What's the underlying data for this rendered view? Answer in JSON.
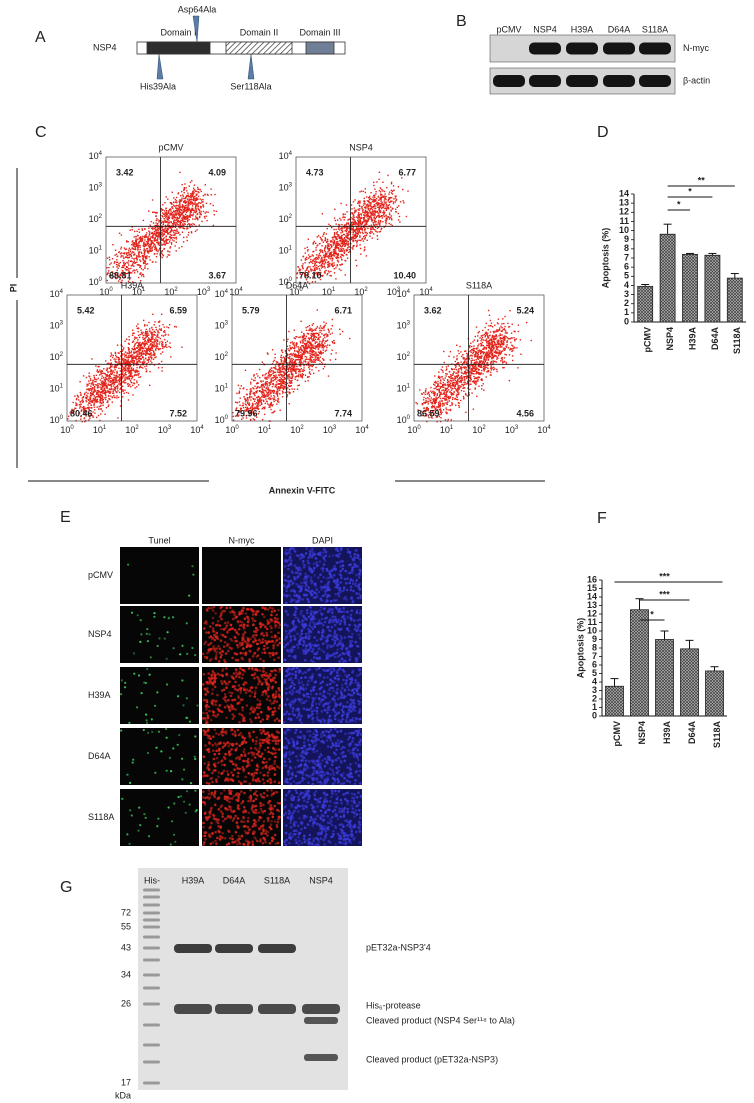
{
  "panels": [
    "A",
    "B",
    "C",
    "D",
    "E",
    "F",
    "G"
  ],
  "domain_map": {
    "protein": "NSP4",
    "domains": [
      "Domain I",
      "Domain II",
      "Domain III"
    ],
    "mutations": [
      "Asp64Ala",
      "His39Ala",
      "Ser118Ala"
    ]
  },
  "western_blot": {
    "lanes": [
      "pCMV",
      "NSP4",
      "H39A",
      "D64A",
      "S118A"
    ],
    "rows": [
      "N-myc",
      "β-actin"
    ]
  },
  "flow_cytometry": {
    "y_label": "PI",
    "x_label": "Annexin V-FITC",
    "tick_base": "10",
    "tick_exponents": [
      "0",
      "1",
      "2",
      "3",
      "4"
    ],
    "plots": [
      {
        "title": "pCMV",
        "quadrants": [
          "3.42",
          "4.09",
          "88.81",
          "3.67"
        ]
      },
      {
        "title": "NSP4",
        "quadrants": [
          "4.73",
          "6.77",
          "78.10",
          "10.40"
        ]
      },
      {
        "title": "H39A",
        "quadrants": [
          "5.42",
          "6.59",
          "80.46",
          "7.52"
        ]
      },
      {
        "title": "D64A",
        "quadrants": [
          "5.79",
          "6.71",
          "79.96",
          "7.74"
        ]
      },
      {
        "title": "S118A",
        "quadrants": [
          "3.62",
          "5.24",
          "86.59",
          "4.56"
        ]
      }
    ]
  },
  "chart_data": [
    {
      "type": "bar",
      "y_label": "Apoptosis (%)",
      "categories": [
        "pCMV",
        "NSP4",
        "H39A",
        "D64A",
        "S118A"
      ],
      "values": [
        3.9,
        9.6,
        7.4,
        7.3,
        4.8
      ],
      "errors": [
        0.2,
        1.1,
        0.1,
        0.2,
        0.5
      ],
      "color": "#8a8a8a",
      "ylim": [
        0,
        14
      ],
      "yticks": [
        0,
        1,
        2,
        3,
        4,
        5,
        6,
        7,
        8,
        9,
        10,
        11,
        12,
        13,
        14
      ],
      "annotations": [
        {
          "text": "**",
          "from": "NSP4",
          "to": "S118A"
        },
        {
          "text": "*",
          "from": "NSP4",
          "to": "D64A"
        },
        {
          "text": "*",
          "from": "NSP4",
          "to": "H39A"
        }
      ]
    },
    {
      "type": "bar",
      "y_label": "Apoptosis  (%)",
      "categories": [
        "pCMV",
        "NSP4",
        "H39A",
        "D64A",
        "S118A"
      ],
      "values": [
        3.5,
        12.5,
        9.0,
        7.9,
        5.3
      ],
      "errors": [
        0.9,
        1.3,
        1.0,
        1.0,
        0.5
      ],
      "color": "#8a8a8a",
      "ylim": [
        0,
        16
      ],
      "yticks": [
        0,
        1,
        2,
        3,
        4,
        5,
        6,
        7,
        8,
        9,
        10,
        11,
        12,
        13,
        14,
        15,
        16
      ],
      "annotations": [
        {
          "text": "***",
          "from": "pCMV",
          "to": "S118A"
        },
        {
          "text": "***",
          "from": "NSP4",
          "to": "D64A"
        },
        {
          "text": "*",
          "from": "NSP4",
          "to": "H39A"
        }
      ]
    }
  ],
  "microscopy": {
    "columns": [
      "Tunel",
      "N-myc",
      "DAPI"
    ],
    "rows": [
      "pCMV",
      "NSP4",
      "H39A",
      "D64A",
      "S118A"
    ]
  },
  "gel": {
    "lanes": [
      "His-",
      "H39A",
      "D64A",
      "S118A",
      "NSP4"
    ],
    "markers": [
      "72",
      "55",
      "43",
      "34",
      "26",
      "17"
    ],
    "unit": "kDa",
    "band_labels": [
      "pET32a-NSP3'4",
      "His₆-protease",
      "Cleaved product (NSP4 Ser¹¹⁸  to Ala)",
      "Cleaved product (pET32a-NSP3)"
    ]
  }
}
